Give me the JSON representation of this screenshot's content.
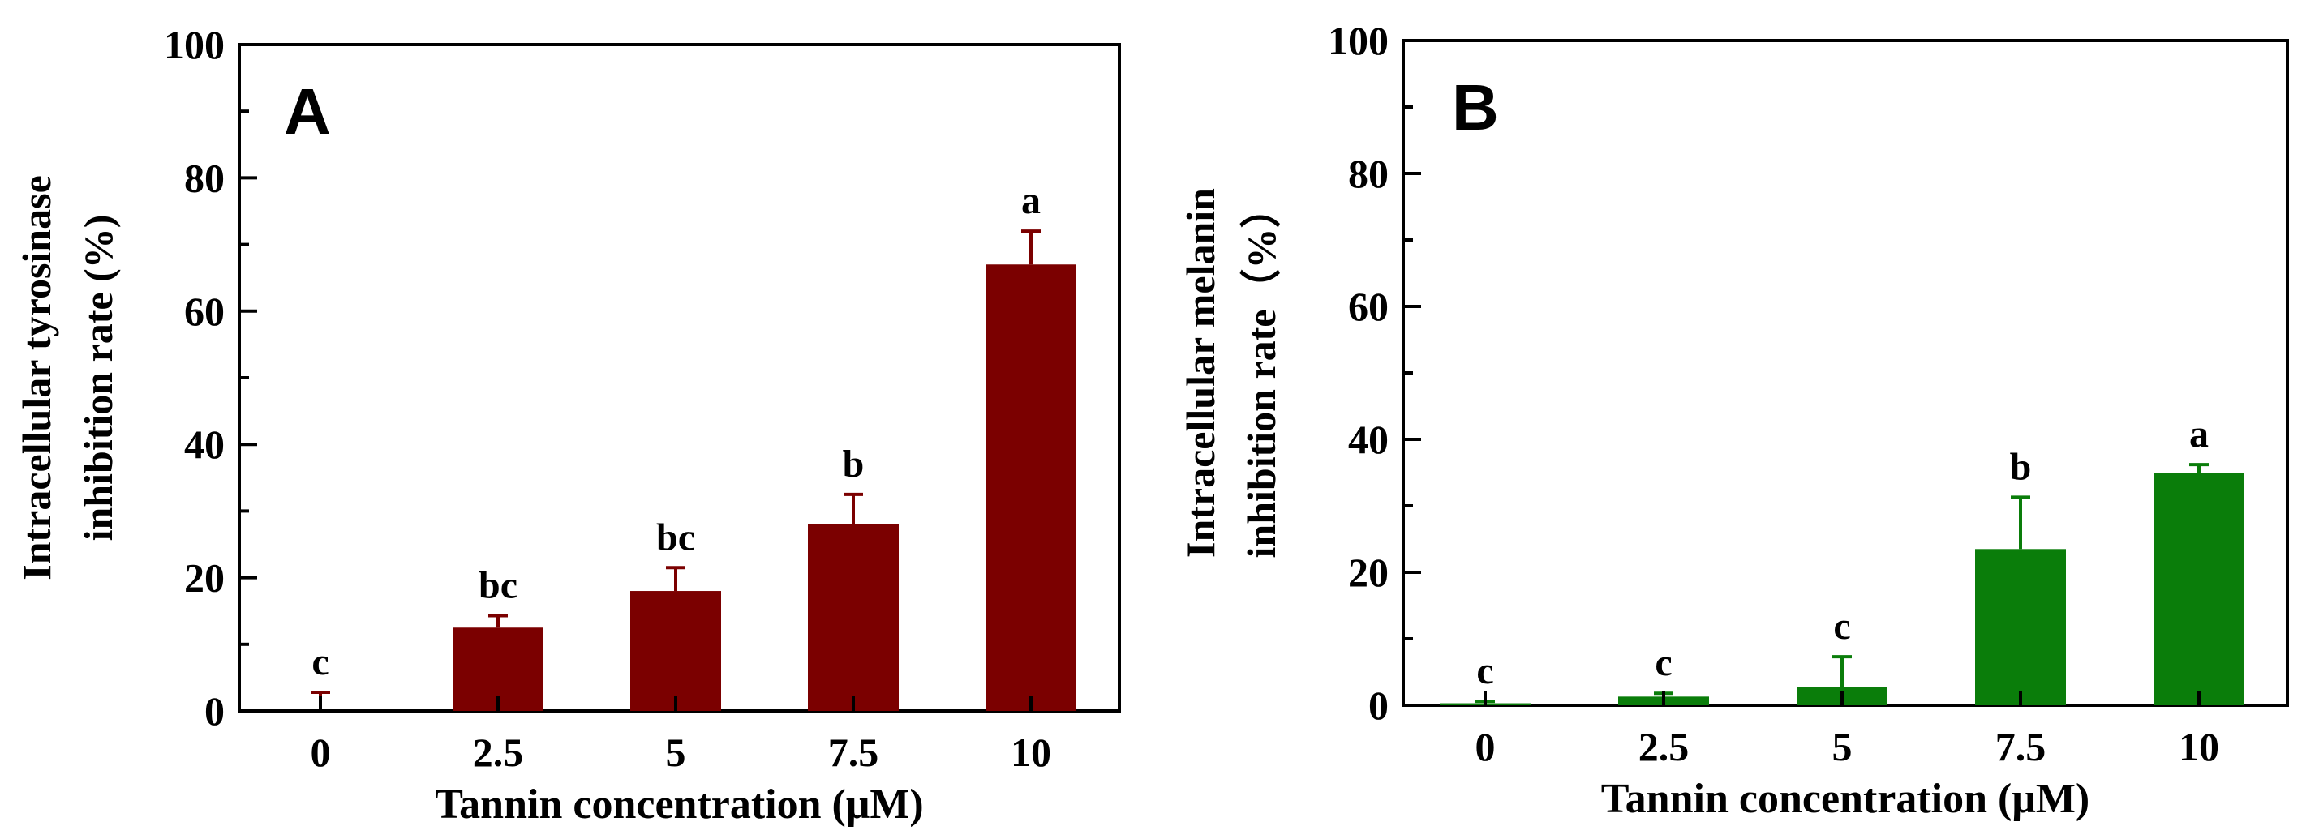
{
  "chart_data": [
    {
      "panel_label": "A",
      "type": "bar",
      "title": "",
      "xlabel": "Tannin concentration (μM)",
      "ylabel_lines": [
        "Intracellular tyrosinase",
        "inhibition rate (%)"
      ],
      "categories": [
        "0",
        "2.5",
        "5",
        "7.5",
        "10"
      ],
      "values": [
        0,
        12.5,
        18,
        28,
        67
      ],
      "errors": [
        2.8,
        1.8,
        3.5,
        4.5,
        5
      ],
      "significance": [
        "c",
        "bc",
        "bc",
        "b",
        "a"
      ],
      "ylim": [
        0,
        100
      ],
      "yticks": [
        "0",
        "20",
        "40",
        "60",
        "80",
        "100"
      ],
      "bar_color": "#7b0000"
    },
    {
      "panel_label": "B",
      "type": "bar",
      "title": "",
      "xlabel": "Tannin concentration (μM)",
      "ylabel_lines": [
        "Intracellular melanin",
        "inhibition rate（%）"
      ],
      "categories": [
        "0",
        "2.5",
        "5",
        "7.5",
        "10"
      ],
      "values": [
        0.3,
        1.3,
        2.8,
        23.5,
        35
      ],
      "errors": [
        0.3,
        0.5,
        4.5,
        7.8,
        1.2
      ],
      "significance": [
        "c",
        "c",
        "c",
        "b",
        "a"
      ],
      "ylim": [
        0,
        100
      ],
      "yticks": [
        "0",
        "20",
        "40",
        "60",
        "80",
        "100"
      ],
      "bar_color": "#0a7d0a"
    }
  ]
}
